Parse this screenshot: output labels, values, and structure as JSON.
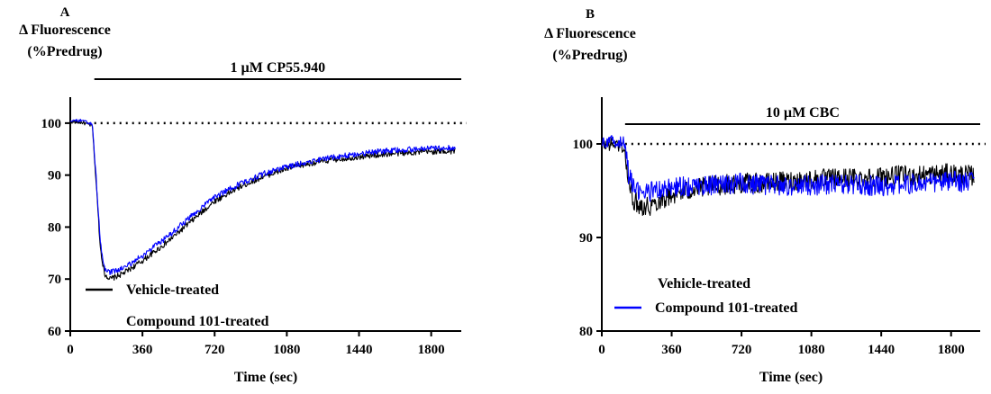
{
  "chart_data": [
    {
      "type": "line",
      "panel_label": "A",
      "ylabel": [
        "Δ Fluorescence",
        "(%Predrug)"
      ],
      "xlabel": "Time (sec)",
      "xlim": [
        0,
        1950
      ],
      "ylim": [
        60,
        105
      ],
      "xticks": [
        0,
        360,
        720,
        1080,
        1440,
        1800
      ],
      "yticks": [
        60,
        70,
        80,
        90,
        100
      ],
      "grid": false,
      "reference_line": {
        "y": 100,
        "style": "dotted"
      },
      "drug_bar": {
        "label": "1 µM CP55.940",
        "x_start": 120,
        "x_end": 1950
      },
      "legend": {
        "placement": "bottom-left"
      },
      "series": [
        {
          "name": "Vehicle-treated",
          "color": "#000000",
          "x": [
            0,
            60,
            110,
            130,
            150,
            170,
            200,
            260,
            360,
            480,
            600,
            720,
            840,
            960,
            1080,
            1200,
            1320,
            1440,
            1560,
            1680,
            1800,
            1920
          ],
          "y": [
            100.3,
            100.1,
            99.5,
            88,
            76,
            71,
            70,
            71,
            73.5,
            77,
            81,
            85,
            87.6,
            89.7,
            91.2,
            92.3,
            93.0,
            93.5,
            94.0,
            94.3,
            94.5,
            94.6
          ]
        },
        {
          "name": "Compound 101-treated",
          "color": "#0000ff",
          "x": [
            0,
            60,
            110,
            130,
            150,
            170,
            200,
            260,
            360,
            480,
            600,
            720,
            840,
            960,
            1080,
            1200,
            1320,
            1440,
            1560,
            1680,
            1800,
            1920
          ],
          "y": [
            100.6,
            100.4,
            99.8,
            89,
            77,
            72,
            71.3,
            72,
            74.5,
            78,
            82,
            85.8,
            88.2,
            90.2,
            91.6,
            92.7,
            93.5,
            94.1,
            94.6,
            94.9,
            95.1,
            95.3
          ]
        }
      ]
    },
    {
      "type": "line",
      "panel_label": "B",
      "ylabel": [
        "Δ Fluorescence",
        "(%Predrug)"
      ],
      "xlabel": "Time (sec)",
      "xlim": [
        0,
        1950
      ],
      "ylim": [
        80,
        105
      ],
      "xticks": [
        0,
        360,
        720,
        1080,
        1440,
        1800
      ],
      "yticks": [
        80,
        90,
        100
      ],
      "grid": false,
      "reference_line": {
        "y": 100,
        "style": "dotted"
      },
      "drug_bar": {
        "label": "10 µM CBC",
        "x_start": 120,
        "x_end": 1950
      },
      "legend": {
        "placement": "bottom-left"
      },
      "series": [
        {
          "name": "Vehicle-treated",
          "color": "#000000",
          "x": [
            0,
            60,
            115,
            140,
            170,
            200,
            240,
            300,
            360,
            480,
            600,
            720,
            840,
            960,
            1080,
            1200,
            1320,
            1440,
            1560,
            1680,
            1800,
            1920
          ],
          "y": [
            99.8,
            100.0,
            99.6,
            95.5,
            93.8,
            93.5,
            93.3,
            94.0,
            94.6,
            95.2,
            95.6,
            95.8,
            95.8,
            96.0,
            96.2,
            96.3,
            96.4,
            96.5,
            96.6,
            96.7,
            96.8,
            96.6
          ]
        },
        {
          "name": "Compound 101-treated",
          "color": "#0000ff",
          "x": [
            0,
            60,
            115,
            140,
            170,
            200,
            240,
            300,
            360,
            480,
            600,
            720,
            840,
            960,
            1080,
            1200,
            1320,
            1440,
            1560,
            1680,
            1800,
            1920
          ],
          "y": [
            100.1,
            100.3,
            100.2,
            96.5,
            95.0,
            94.8,
            94.9,
            95.1,
            95.3,
            95.5,
            95.7,
            95.8,
            95.6,
            95.5,
            95.6,
            95.7,
            95.6,
            95.5,
            95.7,
            95.8,
            96.0,
            95.9
          ]
        }
      ]
    }
  ]
}
